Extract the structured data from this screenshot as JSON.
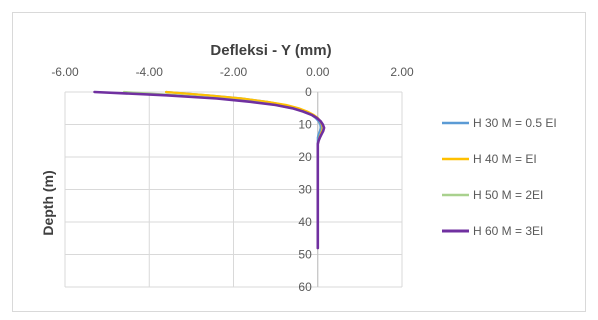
{
  "chart_data": {
    "type": "line",
    "title": "Defleksi - Y (mm)",
    "xlabel": "",
    "ylabel": "Depth (m)",
    "xlim": [
      -6,
      2
    ],
    "ylim": [
      0,
      60
    ],
    "y_inverted": true,
    "x_tick_labels": [
      "-6.00",
      "-4.00",
      "-2.00",
      "0.00",
      "2.00"
    ],
    "x_ticks": [
      -6,
      -4,
      -2,
      0,
      2
    ],
    "y_tick_labels": [
      "0",
      "10",
      "20",
      "30",
      "40",
      "50",
      "60"
    ],
    "y_ticks": [
      0,
      10,
      20,
      30,
      40,
      50,
      60
    ],
    "x_axis_position": "top",
    "grid": true,
    "legend": "right",
    "series": [
      {
        "name": "H 30 M = 0.5 EI",
        "color": "#5b9bd5",
        "points": [
          [
            -3.6,
            0
          ],
          [
            -2.6,
            1
          ],
          [
            -1.8,
            2
          ],
          [
            -1.2,
            3
          ],
          [
            -0.8,
            4
          ],
          [
            -0.5,
            5
          ],
          [
            -0.3,
            6
          ],
          [
            -0.15,
            7
          ],
          [
            -0.05,
            8
          ],
          [
            0.02,
            9
          ],
          [
            0.06,
            10
          ],
          [
            0.07,
            11
          ],
          [
            0.05,
            12
          ],
          [
            0.02,
            13
          ],
          [
            0.0,
            14
          ],
          [
            0.0,
            16
          ],
          [
            0.0,
            20
          ],
          [
            0.0,
            48
          ]
        ]
      },
      {
        "name": "H 40 M = EI",
        "color": "#ffc000",
        "points": [
          [
            -3.6,
            0
          ],
          [
            -2.6,
            1
          ],
          [
            -1.8,
            2
          ],
          [
            -1.2,
            3
          ],
          [
            -0.75,
            4
          ],
          [
            -0.45,
            5
          ],
          [
            -0.25,
            6
          ],
          [
            -0.1,
            7
          ],
          [
            0.0,
            8
          ],
          [
            0.06,
            9
          ],
          [
            0.1,
            10
          ],
          [
            0.12,
            11
          ],
          [
            0.1,
            12
          ],
          [
            0.07,
            13
          ],
          [
            0.04,
            14
          ],
          [
            0.02,
            15
          ],
          [
            0.0,
            16
          ],
          [
            0.0,
            20
          ],
          [
            0.0,
            48
          ]
        ]
      },
      {
        "name": "H 50 M = 2EI",
        "color": "#a9d18e",
        "points": [
          [
            -4.6,
            0
          ],
          [
            -3.3,
            1
          ],
          [
            -2.3,
            2
          ],
          [
            -1.5,
            3
          ],
          [
            -1.0,
            4
          ],
          [
            -0.6,
            5
          ],
          [
            -0.35,
            6
          ],
          [
            -0.15,
            7
          ],
          [
            -0.02,
            8
          ],
          [
            0.07,
            9
          ],
          [
            0.12,
            10
          ],
          [
            0.14,
            11
          ],
          [
            0.12,
            12
          ],
          [
            0.09,
            13
          ],
          [
            0.05,
            14
          ],
          [
            0.02,
            15
          ],
          [
            0.0,
            16
          ],
          [
            0.0,
            20
          ],
          [
            0.0,
            48
          ]
        ]
      },
      {
        "name": "H 60 M = 3EI",
        "color": "#7030a0",
        "points": [
          [
            -5.3,
            0
          ],
          [
            -3.6,
            1
          ],
          [
            -2.4,
            2
          ],
          [
            -1.6,
            3
          ],
          [
            -1.0,
            4
          ],
          [
            -0.6,
            5
          ],
          [
            -0.35,
            6
          ],
          [
            -0.15,
            7
          ],
          [
            -0.02,
            8
          ],
          [
            0.07,
            9
          ],
          [
            0.12,
            10
          ],
          [
            0.15,
            11
          ],
          [
            0.13,
            12
          ],
          [
            0.09,
            13
          ],
          [
            0.05,
            14
          ],
          [
            0.02,
            15
          ],
          [
            0.0,
            16
          ],
          [
            0.0,
            20
          ],
          [
            0.0,
            48
          ]
        ]
      }
    ]
  }
}
